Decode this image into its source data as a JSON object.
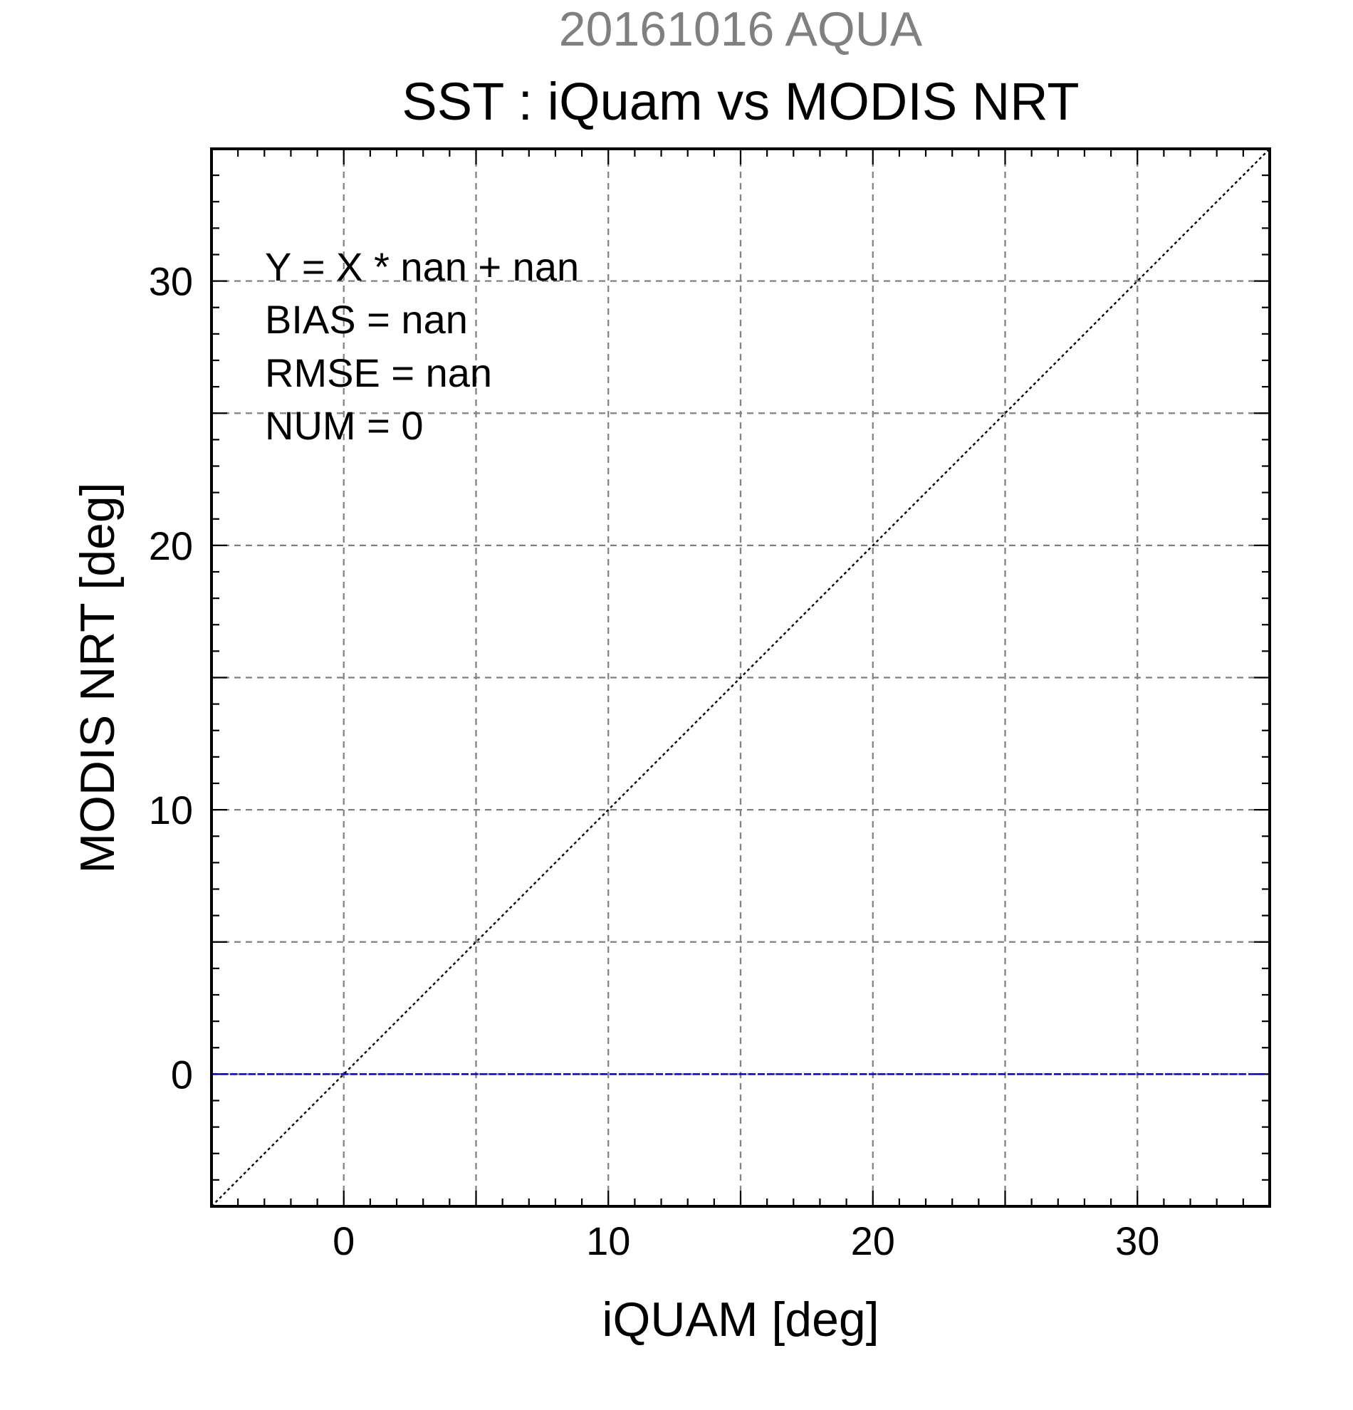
{
  "chart_data": {
    "type": "scatter",
    "supertitle": "20161016 AQUA",
    "title": "SST : iQuam vs MODIS NRT",
    "xlabel": "iQUAM [deg]",
    "ylabel": "MODIS NRT [deg]",
    "xlim": [
      -5,
      35
    ],
    "ylim": [
      -5,
      35
    ],
    "xticks": [
      0,
      10,
      20,
      30
    ],
    "yticks": [
      0,
      10,
      20,
      30
    ],
    "xtick_labels": [
      "0",
      "10",
      "20",
      "30"
    ],
    "ytick_labels": [
      "0",
      "10",
      "20",
      "30"
    ],
    "grid": true,
    "grid_step": 5,
    "minor_tick_step": 1,
    "points": [],
    "reference_lines": [
      {
        "kind": "one-to-one",
        "slope": 1,
        "intercept": 0,
        "style": "dotted",
        "color": "#000000"
      },
      {
        "kind": "horizontal",
        "y": 0,
        "style": "dashed",
        "color": "#0000cc"
      }
    ],
    "stats": {
      "fit": "Y = X * nan + nan",
      "bias": "BIAS = nan",
      "rmse": "RMSE = nan",
      "num": "NUM = 0"
    },
    "colors": {
      "supertitle": "#808080",
      "text": "#000000",
      "grid": "#808080",
      "zero_line": "#0000cc"
    }
  }
}
